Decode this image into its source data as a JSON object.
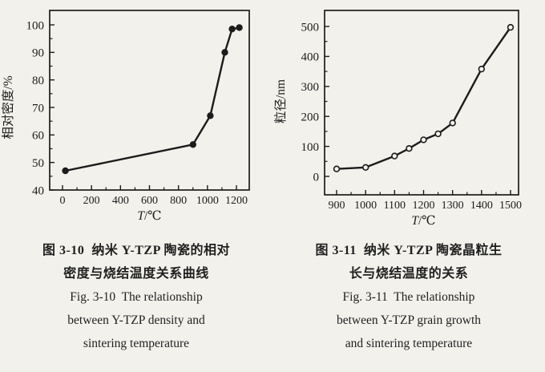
{
  "page": {
    "background": "#f2f1ec",
    "ink": "#1c1c1c"
  },
  "figures": [
    {
      "id": "fig-3-10",
      "caption_lines": [
        "图 3-10  纳米 Y-TZP 陶瓷的相对",
        "密度与烧结温度关系曲线",
        "Fig. 3-10  The relationship",
        "between Y-TZP density and",
        "sintering temperature"
      ]
    },
    {
      "id": "fig-3-11",
      "caption_lines": [
        "图 3-11  纳米 Y-TZP 陶瓷晶粒生",
        "长与烧结温度的关系",
        "Fig. 3-11  The relationship",
        "between Y-TZP grain growth",
        "and sintering temperature"
      ]
    }
  ],
  "chart_data": [
    {
      "type": "line",
      "xlabel": "T/℃",
      "ylabel": "相对密度/%",
      "x": [
        20,
        900,
        1020,
        1120,
        1170,
        1220
      ],
      "y": [
        47,
        56.5,
        67,
        90,
        98.5,
        99
      ],
      "xlim": [
        0,
        1200
      ],
      "ylim": [
        40,
        100
      ],
      "xticks": [
        0,
        200,
        400,
        600,
        800,
        1000,
        1200
      ],
      "yticks": [
        40,
        50,
        60,
        70,
        80,
        90,
        100
      ],
      "minor_ticks": "midpoints",
      "marker": "filled-circle",
      "grid": false,
      "legend": "none",
      "line_color": "#1c1c1c"
    },
    {
      "type": "line",
      "xlabel": "T/℃",
      "ylabel": "粒径/nm",
      "x": [
        900,
        1000,
        1100,
        1150,
        1200,
        1250,
        1300,
        1400,
        1500
      ],
      "y": [
        25,
        30,
        68,
        93,
        122,
        142,
        178,
        358,
        497
      ],
      "xlim": [
        900,
        1500
      ],
      "ylim": [
        0,
        500
      ],
      "xticks": [
        900,
        1000,
        1100,
        1200,
        1300,
        1400,
        1500
      ],
      "yticks": [
        0,
        100,
        200,
        300,
        400,
        500
      ],
      "minor_ticks": "midpoints",
      "marker": "open-circle",
      "grid": false,
      "legend": "none",
      "line_color": "#1c1c1c"
    }
  ]
}
